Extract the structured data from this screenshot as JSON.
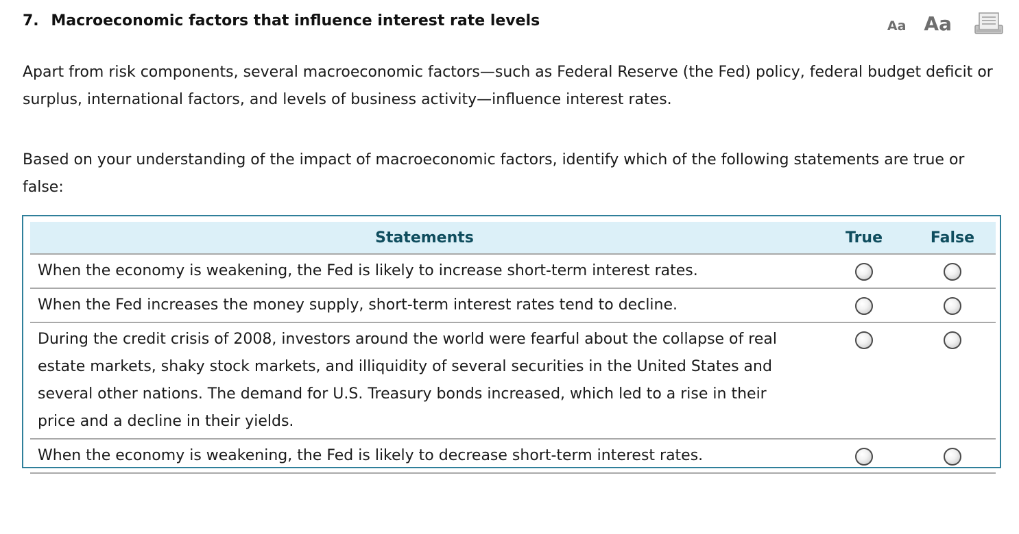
{
  "question": {
    "number": "7.",
    "title": "Macroeconomic factors that influence interest rate levels"
  },
  "toolbar": {
    "small_text_label": "Aa",
    "large_text_label": "Aa",
    "print_icon": "print-icon"
  },
  "intro": "Apart from risk components, several macroeconomic factors—such as Federal Reserve (the Fed) policy, federal budget deficit or surplus, international factors, and levels of business activity—influence interest rates.",
  "instructions": "Based on your understanding of the impact of macroeconomic factors, identify which of the following statements are true or false:",
  "table": {
    "headers": {
      "statements": "Statements",
      "true": "True",
      "false": "False"
    },
    "rows": [
      {
        "statement": "When the economy is weakening, the Fed is likely to increase short-term interest rates."
      },
      {
        "statement": "When the Fed increases the money supply, short-term interest rates tend to decline."
      },
      {
        "statement": "During the credit crisis of 2008, investors around the world were fearful about the collapse of real estate markets, shaky stock markets, and illiquidity of several securities in the United States and several other nations. The demand for U.S. Treasury bonds increased, which led to a rise in their price and a decline in their yields."
      },
      {
        "statement": "When the economy is weakening, the Fed is likely to decrease short-term interest rates."
      }
    ]
  },
  "colors": {
    "table_border": "#2f7f9a",
    "header_background": "#dcf0f8",
    "header_text": "#0f4d5e",
    "toolbar_icon": "#6e6e6e"
  }
}
